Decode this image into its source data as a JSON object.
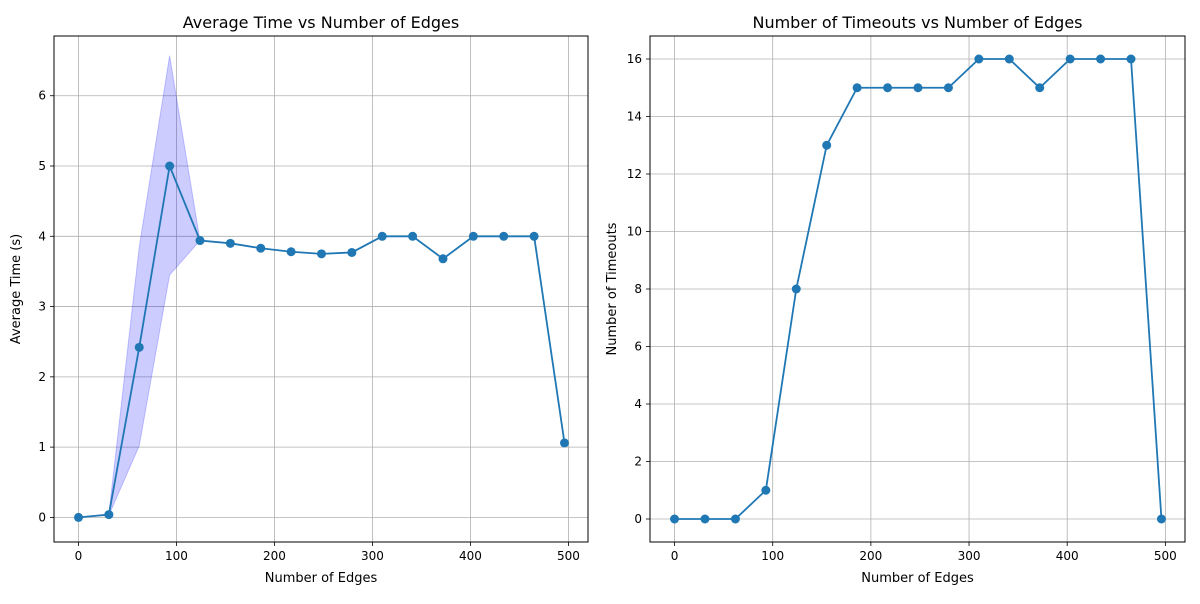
{
  "chart_data": [
    {
      "type": "line",
      "title": "Average Time vs Number of Edges",
      "xlabel": "Number of Edges",
      "ylabel": "Average Time (s)",
      "xlim": [
        -25,
        520
      ],
      "ylim": [
        -0.35,
        6.85
      ],
      "xticks": [
        0,
        100,
        200,
        300,
        400,
        500
      ],
      "yticks": [
        0,
        1,
        2,
        3,
        4,
        5,
        6
      ],
      "grid": true,
      "line_color": "#1f77b4",
      "band_color": "#0000ff",
      "x": [
        0,
        31,
        62,
        93,
        124,
        155,
        186,
        217,
        248,
        279,
        310,
        341,
        372,
        403,
        434,
        465,
        496
      ],
      "series": [
        {
          "values": [
            0,
            0.04,
            2.42,
            5.0,
            3.94,
            3.9,
            3.83,
            3.78,
            3.75,
            3.77,
            4.0,
            4.0,
            3.68,
            4.0,
            4.0,
            4.0,
            1.06
          ]
        }
      ],
      "band": {
        "x": [
          0,
          31,
          62,
          93,
          124
        ],
        "lower": [
          0,
          0.03,
          1.02,
          3.45,
          3.94
        ],
        "upper": [
          0,
          0.05,
          3.85,
          6.57,
          3.94
        ]
      }
    },
    {
      "type": "line",
      "title": "Number of Timeouts vs Number of Edges",
      "xlabel": "Number of Edges",
      "ylabel": "Number of Timeouts",
      "xlim": [
        -25,
        520
      ],
      "ylim": [
        -0.8,
        16.8
      ],
      "xticks": [
        0,
        100,
        200,
        300,
        400,
        500
      ],
      "yticks": [
        0,
        2,
        4,
        6,
        8,
        10,
        12,
        14,
        16
      ],
      "grid": true,
      "line_color": "#1f77b4",
      "x": [
        0,
        31,
        62,
        93,
        124,
        155,
        186,
        217,
        248,
        279,
        310,
        341,
        372,
        403,
        434,
        465,
        496
      ],
      "series": [
        {
          "values": [
            0,
            0,
            0,
            1,
            8,
            13,
            15,
            15,
            15,
            15,
            16,
            16,
            15,
            16,
            16,
            16,
            0
          ]
        }
      ]
    }
  ]
}
